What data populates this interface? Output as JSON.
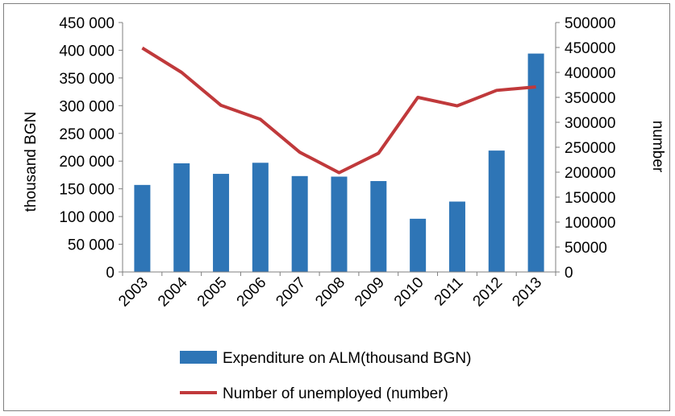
{
  "chart_data": {
    "type": "bar",
    "categories": [
      "2003",
      "2004",
      "2005",
      "2006",
      "2007",
      "2008",
      "2009",
      "2010",
      "2011",
      "2012",
      "2013"
    ],
    "series": [
      {
        "name": "Expenditure on ALM(thousand BGN)",
        "type": "bar",
        "axis": "left",
        "color": "#2e75b6",
        "values": [
          157000,
          196000,
          177000,
          197000,
          173000,
          172000,
          164000,
          96000,
          127000,
          219000,
          394000
        ]
      },
      {
        "name": "Number of unemployed (number)",
        "type": "line",
        "axis": "right",
        "color": "#c0393b",
        "values": [
          449000,
          400000,
          334000,
          306000,
          240000,
          199000,
          238000,
          350000,
          333000,
          364000,
          371000
        ]
      }
    ],
    "y_left": {
      "label": "thousand BGN",
      "range": [
        0,
        450000
      ],
      "ticks": [
        "0",
        "50 000",
        "100 000",
        "150 000",
        "200 000",
        "250 000",
        "300 000",
        "350 000",
        "400 000",
        "450 000"
      ]
    },
    "y_right": {
      "label": "number",
      "range": [
        0,
        500000
      ],
      "ticks": [
        "0",
        "50000",
        "100000",
        "150000",
        "200000",
        "250000",
        "300000",
        "350000",
        "400000",
        "450000",
        "500000"
      ]
    },
    "legend": {
      "position": "bottom",
      "bar_label": "Expenditure on ALM(thousand BGN)",
      "line_label": "Number of unemployed (number)"
    },
    "grid": false
  }
}
